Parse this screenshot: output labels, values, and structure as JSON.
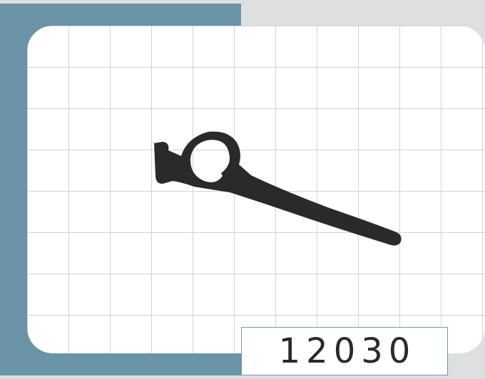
{
  "product": {
    "code": "12030",
    "profile_shape": "rubber-seal-profile"
  },
  "colors": {
    "accent": "#6a93a8",
    "background": "#dddfe1",
    "card": "#ffffff",
    "grid": "#d3d3d3",
    "profile": "#2a2a2a"
  }
}
